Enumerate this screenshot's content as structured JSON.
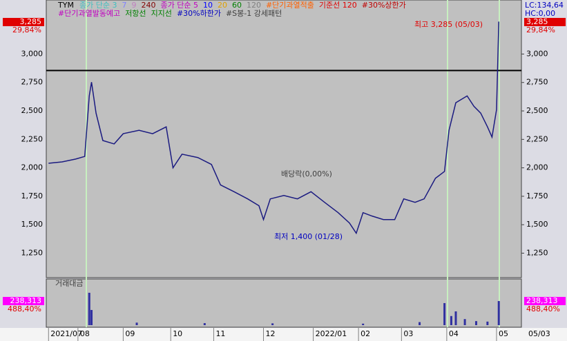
{
  "chart_data": {
    "type": "line",
    "title": "TYM",
    "legend_items": [
      [
        {
          "text": "종가 단순 3",
          "color": "#40c0c0"
        },
        {
          "text": "7",
          "color": "#8080ff"
        },
        {
          "text": "9",
          "color": "#c080c0"
        },
        {
          "text": "240",
          "color": "#800000"
        },
        {
          "text": "종가 단순 5",
          "color": "#c000c0"
        },
        {
          "text": "10",
          "color": "#0000ff"
        },
        {
          "text": "20",
          "color": "#e0a000"
        },
        {
          "text": "60",
          "color": "#008000"
        },
        {
          "text": "120",
          "color": "#808080"
        },
        {
          "text": "#단기과열적출",
          "color": "#ff6000"
        },
        {
          "text": "기준선 120",
          "color": "#e00000"
        },
        {
          "text": "#30%상한가",
          "color": "#c00000"
        }
      ],
      [
        {
          "text": "#단기과열발동예고",
          "color": "#c000c0"
        },
        {
          "text": "저항선",
          "color": "#008000"
        },
        {
          "text": "지지선",
          "color": "#008000"
        },
        {
          "text": "#30%하한가",
          "color": "#0000c0"
        },
        {
          "text": "#S봉-1 강세패턴",
          "color": "#404040"
        }
      ]
    ],
    "series": [
      {
        "name": "TYM",
        "color": "#1a1a80",
        "x": [
          1,
          7,
          13,
          17,
          19,
          20,
          22,
          25,
          30,
          34,
          41,
          47,
          53,
          56,
          60,
          67,
          73,
          77,
          83,
          89,
          94,
          96,
          99,
          105,
          111,
          117,
          123,
          129,
          134,
          137,
          140,
          144,
          149,
          154,
          158,
          163,
          167,
          172,
          176,
          178,
          181,
          186,
          189,
          192,
          195,
          197,
          199,
          200
        ],
        "values": [
          2040,
          2052,
          2077,
          2100,
          2632,
          2753,
          2481,
          2240,
          2210,
          2300,
          2330,
          2300,
          2360,
          2000,
          2120,
          2090,
          2030,
          1850,
          1790,
          1727,
          1667,
          1545,
          1727,
          1757,
          1727,
          1790,
          1697,
          1606,
          1515,
          1425,
          1606,
          1576,
          1545,
          1545,
          1727,
          1697,
          1727,
          1908,
          1968,
          2330,
          2572,
          2632,
          2541,
          2481,
          2360,
          2270,
          2511,
          3285
        ]
      }
    ],
    "reference_line": 2855,
    "xlim": [
      0,
      210
    ],
    "xticks": [
      {
        "value": 1,
        "label": "2021/07"
      },
      {
        "value": 14,
        "label": "08"
      },
      {
        "value": 34,
        "label": "09"
      },
      {
        "value": 55,
        "label": "10"
      },
      {
        "value": 74,
        "label": "11"
      },
      {
        "value": 96,
        "label": "12"
      },
      {
        "value": 118,
        "label": "2022/01"
      },
      {
        "value": 138,
        "label": "02"
      },
      {
        "value": 157,
        "label": "03"
      },
      {
        "value": 177,
        "label": "04"
      },
      {
        "value": 199,
        "label": "05"
      }
    ],
    "last_date": "05/03",
    "ylim": [
      1035,
      3475
    ],
    "yticks": [
      {
        "value": 1250,
        "label": "1,250"
      },
      {
        "value": 1500,
        "label": "1,500"
      },
      {
        "value": 1750,
        "label": "1,750"
      },
      {
        "value": 2000,
        "label": "2,000"
      },
      {
        "value": 2250,
        "label": "2,250"
      },
      {
        "value": 2500,
        "label": "2,500"
      },
      {
        "value": 2750,
        "label": "2,750"
      },
      {
        "value": 3000,
        "label": "3,000"
      }
    ],
    "last_price": {
      "value": 3285,
      "label": "3,285"
    },
    "change_label": "29,84%",
    "lc_label": "LC:134,64",
    "hc_label": "HC:0,00",
    "annotations": {
      "high": "최고 3,285 (05/03)",
      "low": "최저 1,400 (01/28)",
      "ex_dividend": "배당락(0,00%)"
    },
    "volume": {
      "title": "거래대금",
      "color": "#3030a0",
      "x": [
        19,
        20,
        40,
        70,
        100,
        140,
        165,
        176,
        179,
        181,
        185,
        190,
        195,
        200
      ],
      "values": [
        320000,
        150000,
        25000,
        20000,
        18000,
        15000,
        30000,
        218000,
        90000,
        136000,
        60000,
        40000,
        35000,
        238313
      ],
      "ylim": [
        0,
        456000
      ],
      "last": {
        "value": 238313,
        "label": "238,313"
      },
      "ratio_label": "488,40%"
    }
  }
}
